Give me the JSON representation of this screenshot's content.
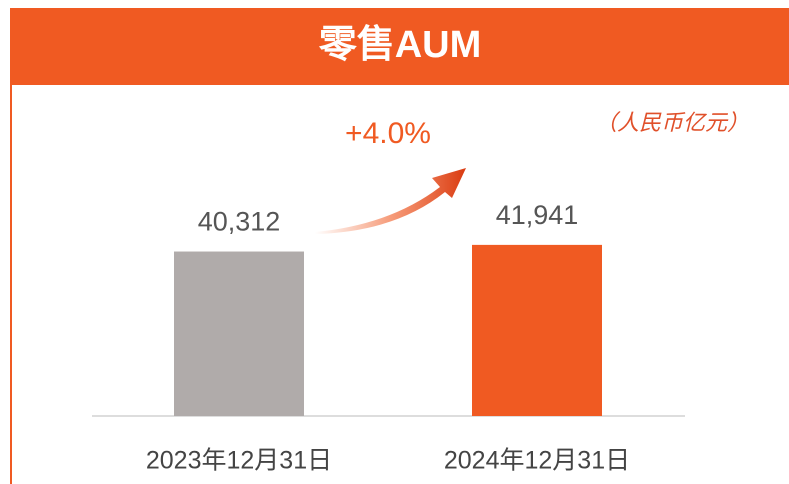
{
  "chart_data": {
    "type": "bar",
    "title": "零售AUM",
    "subtitle": "（人民币亿元）",
    "annotation": "+4.0%",
    "categories": [
      "2023年12月31日",
      "2024年12月31日"
    ],
    "values": [
      40312,
      41941
    ],
    "value_labels": [
      "40,312",
      "41,941"
    ],
    "colors": [
      "#b0abaa",
      "#f05a22"
    ],
    "ylim": [
      0,
      50000
    ]
  }
}
